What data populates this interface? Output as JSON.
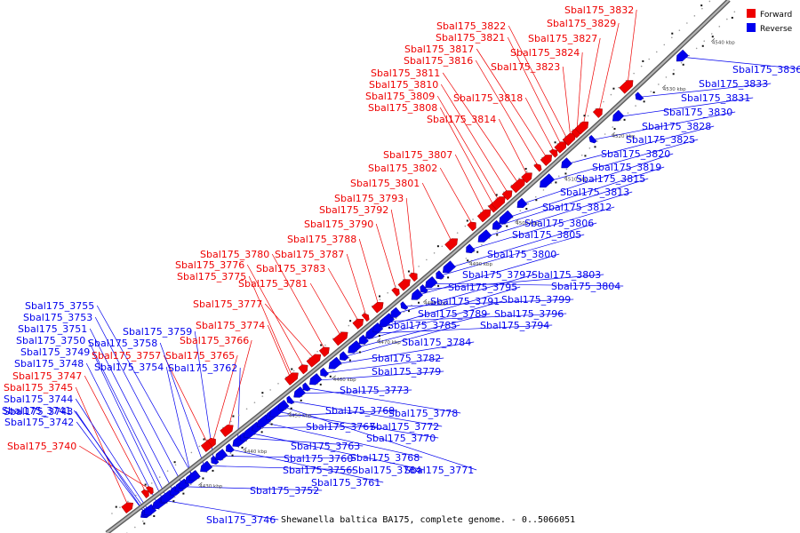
{
  "caption": "Shewanella baltica BA175, complete genome. - 0..5066051",
  "legend": {
    "forward": {
      "label": "Forward",
      "color": "#ee0000"
    },
    "reverse": {
      "label": "Reverse",
      "color": "#0000ee"
    }
  },
  "colors": {
    "backbone": "#8a8a8a",
    "line": "#222222"
  },
  "ticks": [
    "4430 kbp",
    "4440 kbp",
    "4450 kbp",
    "4460 kbp",
    "4470 kbp",
    "4480 kbp",
    "4490 kbp",
    "4500 kbp",
    "4510 kbp",
    "4520 kbp",
    "4530 kbp",
    "4540 kbp"
  ],
  "forward_genes": [
    "Sbal175_3740",
    "Sbal175_3745",
    "Sbal175_3747",
    "Sbal175_3757",
    "Sbal175_3765",
    "Sbal175_3766",
    "Sbal175_3774",
    "Sbal175_3775",
    "Sbal175_3776",
    "Sbal175_3777",
    "Sbal175_3780",
    "Sbal175_3781",
    "Sbal175_3783",
    "Sbal175_3787",
    "Sbal175_3788",
    "Sbal175_3790",
    "Sbal175_3792",
    "Sbal175_3793",
    "Sbal175_3801",
    "Sbal175_3802",
    "Sbal175_3807",
    "Sbal175_3808",
    "Sbal175_3809",
    "Sbal175_3810",
    "Sbal175_3811",
    "Sbal175_3814",
    "Sbal175_3816",
    "Sbal175_3817",
    "Sbal175_3818",
    "Sbal175_3821",
    "Sbal175_3822",
    "Sbal175_3823",
    "Sbal175_3824",
    "Sbal175_3827",
    "Sbal175_3829",
    "Sbal175_3832"
  ],
  "reverse_genes": [
    "Sbal175_3741",
    "Sbal175_3742",
    "Sbal175_3743",
    "Sbal175_3744",
    "Sbal175_3746",
    "Sbal175_3748",
    "Sbal175_3749",
    "Sbal175_3750",
    "Sbal175_3751",
    "Sbal175_3752",
    "Sbal175_3753",
    "Sbal175_3754",
    "Sbal175_3755",
    "Sbal175_3756",
    "Sbal175_3758",
    "Sbal175_3759",
    "Sbal175_3760",
    "Sbal175_3761",
    "Sbal175_3762",
    "Sbal175_3763",
    "Sbal175_3764",
    "Sbal175_3767",
    "Sbal175_3768",
    "Sbal175_3769",
    "Sbal175_3770",
    "Sbal175_3771",
    "Sbal175_3772",
    "Sbal175_3773",
    "Sbal175_3778",
    "Sbal175_3779",
    "Sbal175_3782",
    "Sbal175_3784",
    "Sbal175_3785",
    "Sbal175_3789",
    "Sbal175_3791",
    "Sbal175_3794",
    "Sbal175_3795",
    "Sbal175_3796",
    "Sbal175_3797",
    "Sbal175_3799",
    "Sbal175_3800",
    "Sbal175_3803",
    "Sbal175_3804",
    "Sbal175_3805",
    "Sbal175_3806",
    "Sbal175_3812",
    "Sbal175_3813",
    "Sbal175_3815",
    "Sbal175_3819",
    "Sbal175_3820",
    "Sbal175_3825",
    "Sbal175_3828",
    "Sbal175_3830",
    "Sbal175_3831",
    "Sbal175_3833",
    "Sbal175_3836"
  ]
}
